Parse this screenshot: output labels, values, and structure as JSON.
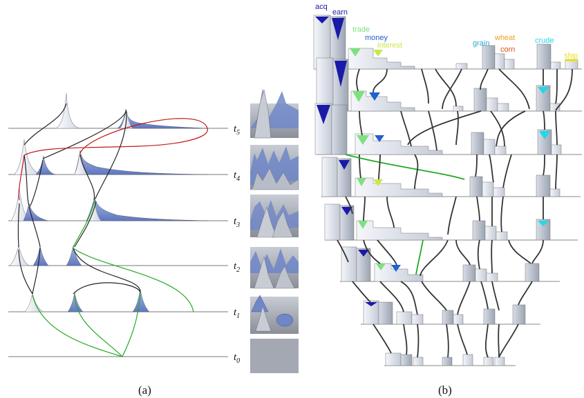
{
  "panel_a": {
    "caption": "(a)",
    "levels": [
      {
        "label": "t",
        "sub": "5"
      },
      {
        "label": "t",
        "sub": "4"
      },
      {
        "label": "t",
        "sub": "3"
      },
      {
        "label": "t",
        "sub": "2"
      },
      {
        "label": "t",
        "sub": "1"
      },
      {
        "label": "t",
        "sub": "0"
      }
    ]
  },
  "panel_b": {
    "caption": "(b)",
    "topics": [
      {
        "name": "acq",
        "color": "#1a1aa8"
      },
      {
        "name": "earn",
        "color": "#1a1aa8"
      },
      {
        "name": "trade",
        "color": "#7fe07f"
      },
      {
        "name": "money",
        "color": "#2060d0"
      },
      {
        "name": "interest",
        "color": "#c8e84a"
      },
      {
        "name": "grain",
        "color": "#2aa8d8"
      },
      {
        "name": "wheat",
        "color": "#f0a020"
      },
      {
        "name": "corn",
        "color": "#e05010"
      },
      {
        "name": "crude",
        "color": "#20d8e8"
      },
      {
        "name": "ship",
        "color": "#e8e020"
      }
    ]
  },
  "colors": {
    "peak_fill": "#6f86c8",
    "peak_light": "#e8ecf4",
    "link_dark": "#222222",
    "link_red": "#c01818",
    "link_green": "#22a822",
    "terrain": "#9a9ea8"
  }
}
